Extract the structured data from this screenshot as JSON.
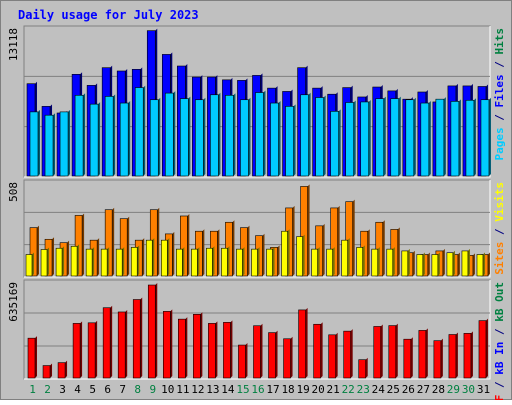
{
  "chart_data": [
    {
      "type": "bar",
      "panel": "top",
      "title": "Daily usage for July 2023",
      "max_label": "13118",
      "ylim": [
        0,
        13118
      ],
      "categories": [
        "1",
        "2",
        "3",
        "4",
        "5",
        "6",
        "7",
        "8",
        "9",
        "10",
        "11",
        "12",
        "13",
        "14",
        "15",
        "16",
        "17",
        "18",
        "19",
        "20",
        "21",
        "22",
        "23",
        "24",
        "25",
        "26",
        "27",
        "28",
        "29",
        "30",
        "31"
      ],
      "series": [
        {
          "name": "Hits",
          "color": "#0000ff",
          "values": [
            8350,
            6300,
            5700,
            9200,
            8200,
            9800,
            9500,
            9650,
            13150,
            11000,
            9950,
            8950,
            8950,
            8700,
            8650,
            9100,
            7950,
            7650,
            9800,
            7950,
            7400,
            8000,
            7150,
            8050,
            7700,
            6950,
            7600,
            6700,
            8150,
            8150,
            8100
          ]
        },
        {
          "name": "Files",
          "color": "#00ccff",
          "values": [
            5800,
            5500,
            5800,
            7300,
            6500,
            7200,
            6600,
            8000,
            6900,
            7500,
            7000,
            6900,
            7350,
            7300,
            6900,
            7550,
            6600,
            6300,
            7350,
            7100,
            5850,
            6650,
            6700,
            7000,
            7000,
            6900,
            6600,
            6950,
            6750,
            6850,
            6900
          ]
        },
        {
          "name": "Pages",
          "color": "#00ccff",
          "values": [
            5800,
            5500,
            5800,
            7300,
            6500,
            7200,
            6600,
            8000,
            6900,
            7500,
            7000,
            6900,
            7350,
            7300,
            6900,
            7550,
            6600,
            6300,
            7350,
            7100,
            5850,
            6650,
            6700,
            7000,
            7000,
            6900,
            6600,
            6950,
            6750,
            6850,
            6900
          ]
        }
      ],
      "side_label": [
        {
          "text": "Pages",
          "color": "#00ccff"
        },
        {
          "text": " / ",
          "color": "#000080"
        },
        {
          "text": "Files",
          "color": "#0000ff"
        },
        {
          "text": " / ",
          "color": "#000080"
        },
        {
          "text": "Hits",
          "color": "#008040"
        }
      ]
    },
    {
      "type": "bar",
      "panel": "middle",
      "max_label": "508",
      "ylim": [
        0,
        508
      ],
      "categories": [
        "1",
        "2",
        "3",
        "4",
        "5",
        "6",
        "7",
        "8",
        "9",
        "10",
        "11",
        "12",
        "13",
        "14",
        "15",
        "16",
        "17",
        "18",
        "19",
        "20",
        "21",
        "22",
        "23",
        "24",
        "25",
        "26",
        "27",
        "28",
        "29",
        "30",
        "31"
      ],
      "series": [
        {
          "name": "Visits",
          "color": "#ffff00",
          "values": [
            120,
            148,
            155,
            166,
            150,
            150,
            150,
            160,
            200,
            200,
            150,
            150,
            155,
            155,
            150,
            150,
            150,
            250,
            220,
            150,
            150,
            200,
            160,
            150,
            150,
            140,
            120,
            120,
            130,
            140,
            120
          ]
        },
        {
          "name": "Sites",
          "color": "#ff8000",
          "values": [
            270,
            205,
            186,
            338,
            200,
            370,
            320,
            200,
            370,
            235,
            335,
            250,
            250,
            300,
            270,
            225,
            160,
            380,
            500,
            280,
            380,
            415,
            250,
            300,
            260,
            130,
            120,
            140,
            120,
            115,
            120
          ]
        }
      ],
      "side_label": [
        {
          "text": "Sites",
          "color": "#ff8000"
        },
        {
          "text": " / ",
          "color": "#000080"
        },
        {
          "text": "Visits",
          "color": "#ffff00"
        }
      ]
    },
    {
      "type": "bar",
      "panel": "bottom",
      "max_label": "635169",
      "ylim": [
        0,
        635169
      ],
      "categories": [
        "1",
        "2",
        "3",
        "4",
        "5",
        "6",
        "7",
        "8",
        "9",
        "10",
        "11",
        "12",
        "13",
        "14",
        "15",
        "16",
        "17",
        "18",
        "19",
        "20",
        "21",
        "22",
        "23",
        "24",
        "25",
        "26",
        "27",
        "28",
        "29",
        "30",
        "31"
      ],
      "series": [
        {
          "name": "kB F",
          "color": "#ff0000",
          "values": [
            272000,
            85000,
            105000,
            373000,
            377000,
            480000,
            451000,
            536000,
            635000,
            455000,
            402000,
            435000,
            373000,
            380000,
            225000,
            357000,
            310000,
            268000,
            465000,
            367000,
            295000,
            320000,
            125000,
            352000,
            358000,
            265000,
            325000,
            255000,
            297000,
            305000,
            392000
          ]
        },
        {
          "name": "kB In",
          "color": "#0000ff",
          "values": [
            0,
            0,
            0,
            0,
            0,
            0,
            0,
            0,
            0,
            0,
            0,
            0,
            0,
            0,
            0,
            0,
            0,
            0,
            0,
            0,
            0,
            0,
            0,
            0,
            0,
            0,
            0,
            0,
            0,
            0,
            0
          ]
        },
        {
          "name": "kB Out",
          "color": "#008040",
          "values": [
            0,
            0,
            0,
            0,
            0,
            0,
            0,
            0,
            0,
            0,
            0,
            0,
            0,
            0,
            0,
            0,
            0,
            0,
            0,
            0,
            0,
            0,
            0,
            0,
            0,
            0,
            0,
            0,
            0,
            0,
            0
          ]
        }
      ],
      "side_label": [
        {
          "text": "kB F",
          "color": "#ff0000"
        },
        {
          "text": " / ",
          "color": "#000080"
        },
        {
          "text": "kB In",
          "color": "#0000ff"
        },
        {
          "text": " / ",
          "color": "#000080"
        },
        {
          "text": "kB Out",
          "color": "#008040"
        }
      ]
    }
  ],
  "colors": {
    "title": "#0000ff",
    "weekday_label": "#000000",
    "weekend_label": "#008040",
    "plot_bg": "#c0c0c0",
    "frame": "#808080"
  },
  "weekend_days": [
    "1",
    "2",
    "8",
    "9",
    "15",
    "16",
    "22",
    "23",
    "29",
    "30"
  ]
}
